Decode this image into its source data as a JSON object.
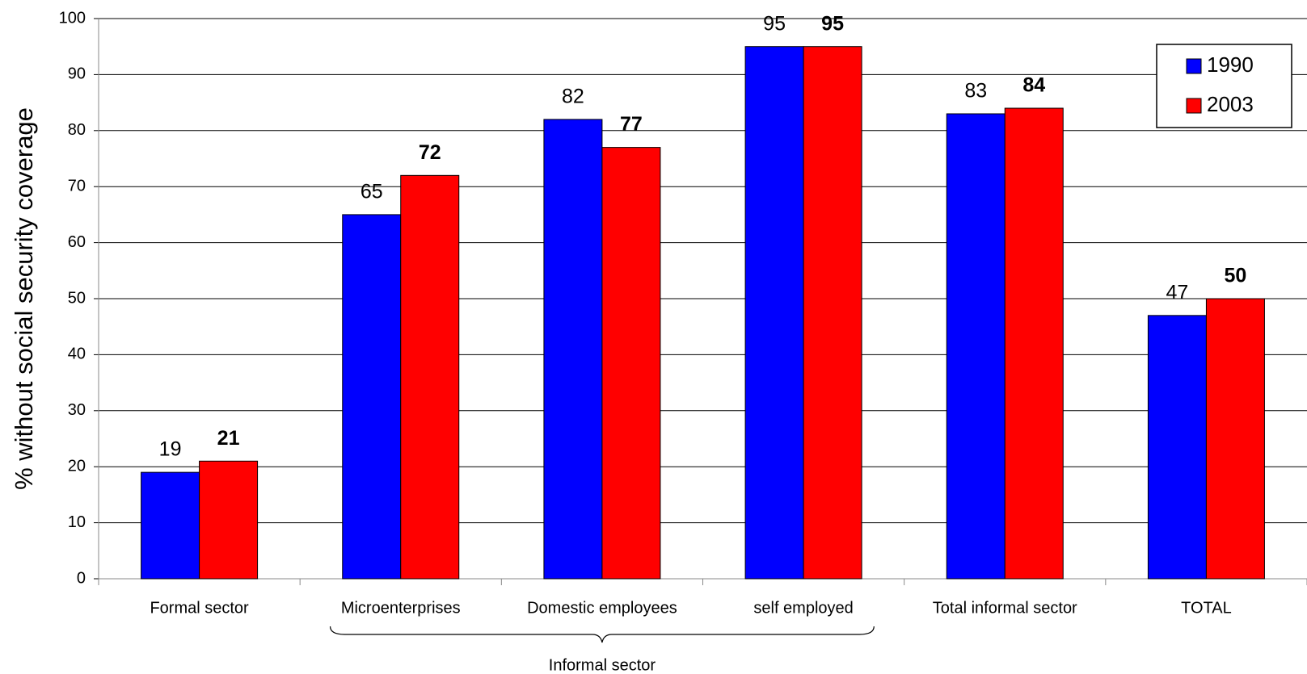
{
  "chart_data": {
    "type": "bar",
    "y_label": "% without social security coverage",
    "annotation": "Informal sector",
    "categories": [
      "Formal sector",
      "Microenterprises",
      "Domestic employees",
      "self employed",
      "Total informal sector",
      "TOTAL"
    ],
    "series": [
      {
        "name": "1990",
        "color": "#0000ff",
        "values": [
          19,
          65,
          82,
          95,
          83,
          47
        ]
      },
      {
        "name": "2003",
        "color": "#ff0000",
        "values": [
          21,
          72,
          77,
          95,
          84,
          50
        ]
      }
    ],
    "ylim": [
      0,
      100
    ],
    "yticks": [
      0,
      10,
      20,
      30,
      40,
      50,
      60,
      70,
      80,
      90,
      100
    ],
    "grid": true,
    "legend": "top-right"
  }
}
